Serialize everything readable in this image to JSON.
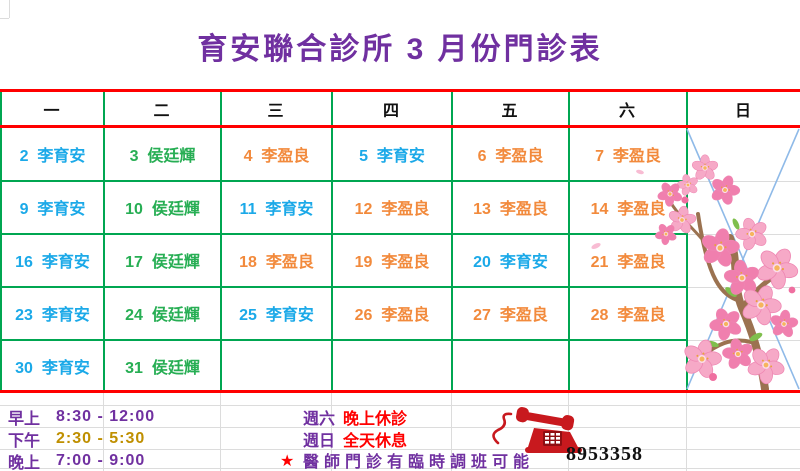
{
  "title": "育安聯合診所 3 月份門診表",
  "calendar": {
    "weekdays": [
      "一",
      "二",
      "三",
      "四",
      "五",
      "六",
      "日"
    ],
    "rows": [
      [
        {
          "day": "2",
          "doctor": "李育安"
        },
        {
          "day": "3",
          "doctor": "侯廷輝"
        },
        {
          "day": "4",
          "doctor": "李盈良"
        },
        {
          "day": "5",
          "doctor": "李育安"
        },
        {
          "day": "6",
          "doctor": "李盈良"
        },
        {
          "day": "7",
          "doctor": "李盈良"
        },
        null
      ],
      [
        {
          "day": "9",
          "doctor": "李育安"
        },
        {
          "day": "10",
          "doctor": "侯廷輝"
        },
        {
          "day": "11",
          "doctor": "李育安"
        },
        {
          "day": "12",
          "doctor": "李盈良"
        },
        {
          "day": "13",
          "doctor": "李盈良"
        },
        {
          "day": "14",
          "doctor": "李盈良"
        },
        null
      ],
      [
        {
          "day": "16",
          "doctor": "李育安"
        },
        {
          "day": "17",
          "doctor": "侯廷輝"
        },
        {
          "day": "18",
          "doctor": "李盈良"
        },
        {
          "day": "19",
          "doctor": "李盈良"
        },
        {
          "day": "20",
          "doctor": "李育安"
        },
        {
          "day": "21",
          "doctor": "李盈良"
        },
        null
      ],
      [
        {
          "day": "23",
          "doctor": "李育安"
        },
        {
          "day": "24",
          "doctor": "侯廷輝"
        },
        {
          "day": "25",
          "doctor": "李育安"
        },
        {
          "day": "26",
          "doctor": "李盈良"
        },
        {
          "day": "27",
          "doctor": "李盈良"
        },
        {
          "day": "28",
          "doctor": "李盈良"
        },
        null
      ],
      [
        {
          "day": "30",
          "doctor": "李育安"
        },
        {
          "day": "31",
          "doctor": "侯廷輝"
        },
        null,
        null,
        null,
        null,
        null
      ]
    ]
  },
  "doctor_colors": {
    "李育安": "#1BA9E8",
    "侯廷輝": "#27AE54",
    "李盈良": "#F28A3C"
  },
  "footer": {
    "sessions": [
      {
        "label": "早上",
        "time": "8:30 - 12:00"
      },
      {
        "label": "下午",
        "time": "2:30 - 5:30"
      },
      {
        "label": "晚上",
        "time": "7:00 - 9:00"
      }
    ],
    "notes": [
      {
        "prefix": "週六",
        "text": "晚上休診"
      },
      {
        "prefix": "週日",
        "text": "全天休息"
      }
    ],
    "remark": {
      "star": "★",
      "text": "醫師門診有臨時調班可能"
    },
    "phone": "8953358",
    "phone_icon": "telephone-icon"
  },
  "colors": {
    "title_purple": "#7030A0",
    "rule_red": "#FF0000",
    "rule_green": "#00A651",
    "time_purple": "#7030A0",
    "time_olive": "#BF8F00",
    "note_red": "#FF0000",
    "x_pattern_blue": "#8FBAE8",
    "phone_red": "#C8191E"
  }
}
